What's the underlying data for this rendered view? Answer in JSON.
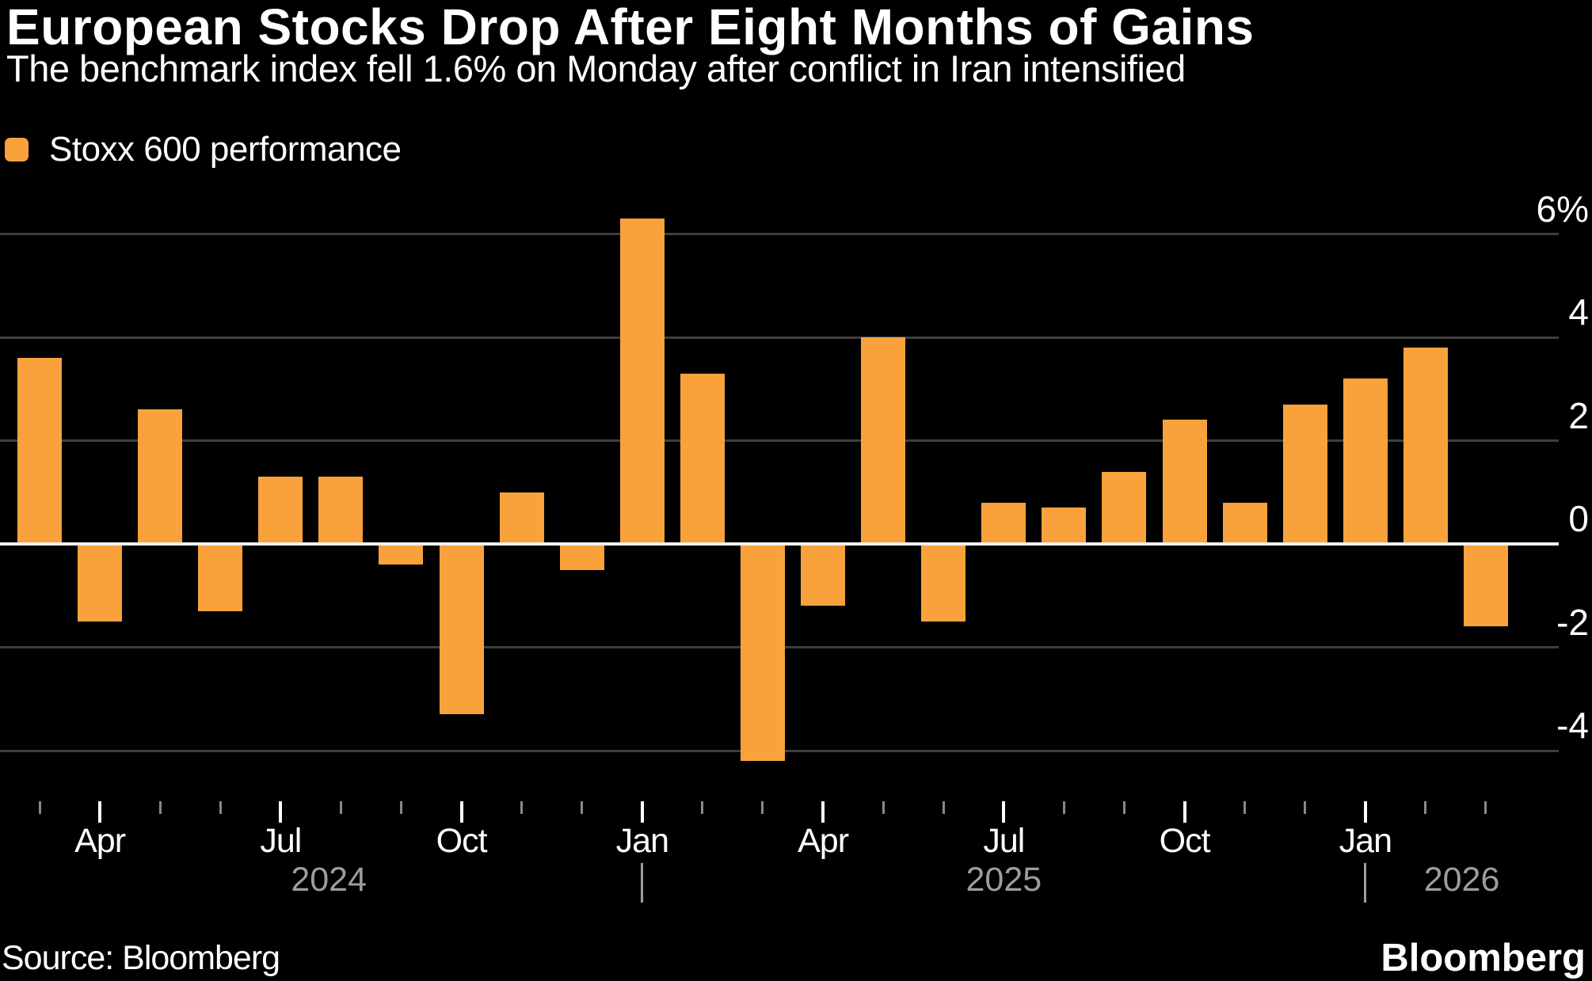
{
  "header": {
    "title": "European Stocks Drop After Eight Months of Gains",
    "subtitle": "The benchmark index fell 1.6% on Monday after conflict in Iran intensified"
  },
  "legend": {
    "label": "Stoxx 600 performance"
  },
  "footer": {
    "source": "Source: Bloomberg",
    "logo": "Bloomberg"
  },
  "colors": {
    "background": "#000000",
    "bar": "#f9a23c",
    "gridline": "#3e3e3e",
    "zero_line": "#f2f2f0",
    "text_primary": "#ffffff",
    "text_secondary": "#9d9d9d",
    "minor_tick": "#888888"
  },
  "chart_data": {
    "type": "bar",
    "title": "European Stocks Drop After Eight Months of Gains",
    "subtitle": "The benchmark index fell 1.6% on Monday after conflict in Iran intensified",
    "series_name": "Stoxx 600 performance",
    "unit": "%",
    "grid": "horizontal",
    "legend_position": "top-left",
    "categories": [
      "Mar 2024",
      "Apr 2024",
      "May 2024",
      "Jun 2024",
      "Jul 2024",
      "Aug 2024",
      "Sep 2024",
      "Oct 2024",
      "Nov 2024",
      "Dec 2024",
      "Jan 2025",
      "Feb 2025",
      "Mar 2025",
      "Apr 2025",
      "May 2025",
      "Jun 2025",
      "Jul 2025",
      "Aug 2025",
      "Sep 2025",
      "Oct 2025",
      "Nov 2025",
      "Dec 2025",
      "Jan 2026",
      "Feb 2026",
      "Mar 2026"
    ],
    "values": [
      3.6,
      -1.5,
      2.6,
      -1.3,
      1.3,
      1.3,
      -0.4,
      -3.3,
      1.0,
      -0.5,
      6.3,
      3.3,
      -4.2,
      -1.2,
      4.0,
      -1.5,
      0.8,
      0.7,
      1.4,
      2.4,
      0.8,
      2.7,
      3.2,
      3.8,
      -1.6
    ],
    "ylim": [
      -5,
      7
    ],
    "y_gridlines": [
      6,
      4,
      2,
      0,
      -2,
      -4
    ],
    "y_tick_labels": [
      "6%",
      "4",
      "2",
      "0",
      "-2",
      "-4"
    ],
    "x_axis": {
      "major_tick_indices": [
        1,
        4,
        7,
        10,
        13,
        16,
        19,
        22
      ],
      "major_tick_labels": [
        "Apr",
        "Jul",
        "Oct",
        "Jan",
        "Apr",
        "Jul",
        "Oct",
        "Jan"
      ],
      "minor_ticks": "every month",
      "year_markers": [
        {
          "label": "2024",
          "center_index": 4.8
        },
        {
          "label": "2025",
          "center_index": 16.0
        },
        {
          "label": "2026",
          "center_index": 23.6
        }
      ],
      "year_divider_indices": [
        10,
        22
      ]
    }
  }
}
